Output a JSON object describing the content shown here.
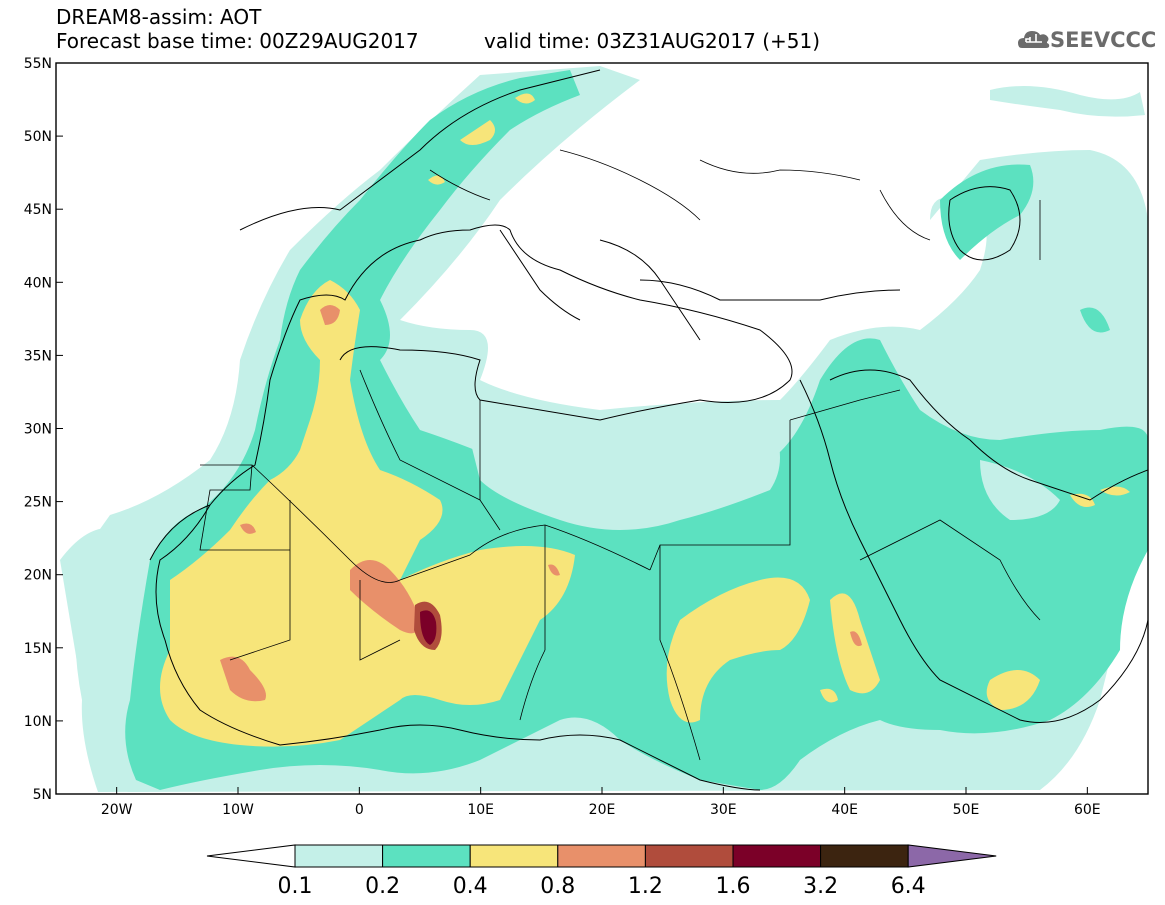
{
  "header": {
    "model_title": "DREAM8-assim: AOT",
    "base_time": "Forecast base time: 00Z29AUG2017",
    "valid_time": "valid time: 03Z31AUG2017 (+51)"
  },
  "logo": {
    "text": "SEEVCCC",
    "icon": "cloud-icon"
  },
  "map": {
    "lon_range": [
      -25,
      65
    ],
    "lat_range": [
      5,
      55
    ],
    "lat_ticks": [
      {
        "value": 55,
        "label": "55N"
      },
      {
        "value": 50,
        "label": "50N"
      },
      {
        "value": 45,
        "label": "45N"
      },
      {
        "value": 40,
        "label": "40N"
      },
      {
        "value": 35,
        "label": "35N"
      },
      {
        "value": 30,
        "label": "30N"
      },
      {
        "value": 25,
        "label": "25N"
      },
      {
        "value": 20,
        "label": "20N"
      },
      {
        "value": 15,
        "label": "15N"
      },
      {
        "value": 10,
        "label": "10N"
      },
      {
        "value": 5,
        "label": "5N"
      }
    ],
    "lon_ticks": [
      {
        "value": -20,
        "label": "20W"
      },
      {
        "value": -10,
        "label": "10W"
      },
      {
        "value": 0,
        "label": "0"
      },
      {
        "value": 10,
        "label": "10E"
      },
      {
        "value": 20,
        "label": "20E"
      },
      {
        "value": 30,
        "label": "30E"
      },
      {
        "value": 40,
        "label": "40E"
      },
      {
        "value": 50,
        "label": "50E"
      },
      {
        "value": 60,
        "label": "60E"
      }
    ]
  },
  "colorbar": {
    "colors": [
      "#ffffff",
      "#c4f0e8",
      "#5ce1c0",
      "#f7e57a",
      "#e8906a",
      "#b04c3c",
      "#7b0028",
      "#3c2410",
      "#8c68a8"
    ],
    "labels": [
      "0.1",
      "0.2",
      "0.4",
      "0.8",
      "1.2",
      "1.6",
      "3.2",
      "6.4"
    ]
  }
}
